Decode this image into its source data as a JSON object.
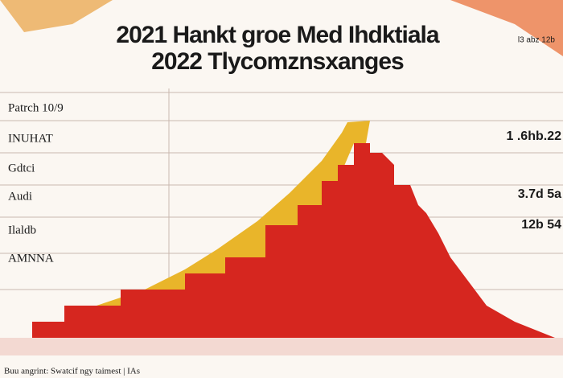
{
  "header": {
    "title_line_1": "2021 Hankt groe Med Ihdktiala",
    "title_line_2": "2022 Tlycomznsxanges",
    "corner_note": "l3 abz 12b"
  },
  "left_labels": [
    "Patrch 10/9",
    "INUHAT",
    "Gdtci",
    "Audi",
    "Ilaldb",
    "AMNNA"
  ],
  "right_labels": [
    "1 .6hb.22",
    "3.7d 5a",
    "12b 54"
  ],
  "footer": "Buu angrint: Swatcif ngy taimest | IAs"
}
